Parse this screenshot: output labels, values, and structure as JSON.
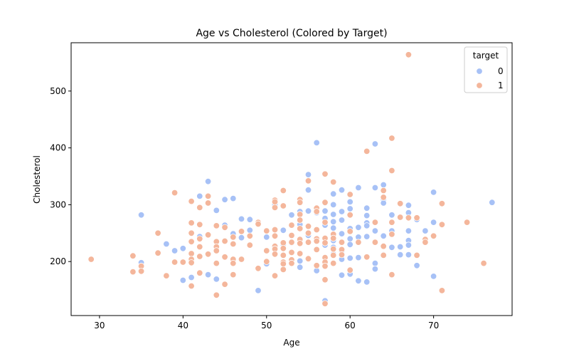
{
  "chart_data": {
    "type": "scatter",
    "title": "Age vs Cholesterol (Colored by Target)",
    "xlabel": "Age",
    "ylabel": "Cholesterol",
    "xlim": [
      26.6,
      79.4
    ],
    "ylim": [
      105,
      585
    ],
    "xticks": [
      30,
      40,
      50,
      60,
      70
    ],
    "yticks": [
      200,
      300,
      400,
      500
    ],
    "grid": false,
    "legend": {
      "title": "target",
      "placement": "top-right"
    },
    "series": [
      {
        "name": "0",
        "color": "#a7c1f6",
        "points": [
          [
            35,
            282
          ],
          [
            35,
            198
          ],
          [
            38,
            231
          ],
          [
            39,
            219
          ],
          [
            40,
            223
          ],
          [
            40,
            167
          ],
          [
            41,
            172
          ],
          [
            42,
            315
          ],
          [
            42,
            244
          ],
          [
            43,
            341
          ],
          [
            43,
            177
          ],
          [
            44,
            290
          ],
          [
            44,
            169
          ],
          [
            45,
            309
          ],
          [
            45,
            264
          ],
          [
            46,
            311
          ],
          [
            46,
            249
          ],
          [
            47,
            275
          ],
          [
            47,
            242
          ],
          [
            48,
            274
          ],
          [
            48,
            255
          ],
          [
            49,
            149
          ],
          [
            50,
            243
          ],
          [
            50,
            196
          ],
          [
            51,
            303
          ],
          [
            51,
            300
          ],
          [
            51,
            227
          ],
          [
            52,
            255
          ],
          [
            52,
            230
          ],
          [
            53,
            282
          ],
          [
            53,
            233
          ],
          [
            54,
            288
          ],
          [
            54,
            265
          ],
          [
            54,
            201
          ],
          [
            54,
            190
          ],
          [
            55,
            353
          ],
          [
            55,
            326
          ],
          [
            55,
            289
          ],
          [
            55,
            246
          ],
          [
            56,
            409
          ],
          [
            56,
            286
          ],
          [
            56,
            184
          ],
          [
            57,
            303
          ],
          [
            57,
            289
          ],
          [
            57,
            276
          ],
          [
            57,
            264
          ],
          [
            57,
            241
          ],
          [
            57,
            229
          ],
          [
            57,
            207
          ],
          [
            57,
            131
          ],
          [
            58,
            319
          ],
          [
            58,
            300
          ],
          [
            58,
            283
          ],
          [
            58,
            270
          ],
          [
            58,
            259
          ],
          [
            58,
            248
          ],
          [
            58,
            237
          ],
          [
            58,
            225
          ],
          [
            58,
            213
          ],
          [
            59,
            326
          ],
          [
            59,
            288
          ],
          [
            59,
            273
          ],
          [
            59,
            249
          ],
          [
            59,
            218
          ],
          [
            59,
            204
          ],
          [
            59,
            176
          ],
          [
            60,
            305
          ],
          [
            60,
            293
          ],
          [
            60,
            258
          ],
          [
            60,
            240
          ],
          [
            60,
            230
          ],
          [
            60,
            206
          ],
          [
            60,
            178
          ],
          [
            61,
            330
          ],
          [
            61,
            260
          ],
          [
            61,
            243
          ],
          [
            61,
            207
          ],
          [
            61,
            166
          ],
          [
            62,
            294
          ],
          [
            62,
            281
          ],
          [
            62,
            268
          ],
          [
            62,
            263
          ],
          [
            62,
            244
          ],
          [
            62,
            164
          ],
          [
            63,
            407
          ],
          [
            63,
            330
          ],
          [
            63,
            254
          ],
          [
            63,
            197
          ],
          [
            63,
            187
          ],
          [
            64,
            335
          ],
          [
            64,
            309
          ],
          [
            64,
            303
          ],
          [
            64,
            245
          ],
          [
            64,
            212
          ],
          [
            65,
            282
          ],
          [
            65,
            254
          ],
          [
            65,
            248
          ],
          [
            65,
            225
          ],
          [
            66,
            226
          ],
          [
            66,
            212
          ],
          [
            67,
            299
          ],
          [
            67,
            286
          ],
          [
            67,
            254
          ],
          [
            67,
            237
          ],
          [
            67,
            229
          ],
          [
            67,
            212
          ],
          [
            68,
            274
          ],
          [
            68,
            193
          ],
          [
            69,
            254
          ],
          [
            70,
            322
          ],
          [
            70,
            269
          ],
          [
            70,
            174
          ],
          [
            77,
            304
          ]
        ]
      },
      {
        "name": "1",
        "color": "#f4b69b",
        "points": [
          [
            29,
            204
          ],
          [
            34,
            210
          ],
          [
            34,
            182
          ],
          [
            35,
            192
          ],
          [
            35,
            183
          ],
          [
            37,
            250
          ],
          [
            37,
            215
          ],
          [
            38,
            175
          ],
          [
            39,
            321
          ],
          [
            39,
            199
          ],
          [
            40,
            199
          ],
          [
            41,
            306
          ],
          [
            41,
            268
          ],
          [
            41,
            250
          ],
          [
            41,
            235
          ],
          [
            41,
            214
          ],
          [
            41,
            204
          ],
          [
            41,
            198
          ],
          [
            41,
            157
          ],
          [
            42,
            295
          ],
          [
            42,
            265
          ],
          [
            42,
            240
          ],
          [
            42,
            226
          ],
          [
            42,
            209
          ],
          [
            42,
            180
          ],
          [
            43,
            315
          ],
          [
            43,
            303
          ],
          [
            43,
            247
          ],
          [
            43,
            213
          ],
          [
            44,
            263
          ],
          [
            44,
            235
          ],
          [
            44,
            226
          ],
          [
            44,
            219
          ],
          [
            44,
            197
          ],
          [
            44,
            141
          ],
          [
            45,
            260
          ],
          [
            45,
            236
          ],
          [
            45,
            208
          ],
          [
            45,
            160
          ],
          [
            46,
            243
          ],
          [
            46,
            231
          ],
          [
            46,
            204
          ],
          [
            46,
            197
          ],
          [
            46,
            177
          ],
          [
            47,
            253
          ],
          [
            47,
            204
          ],
          [
            48,
            245
          ],
          [
            48,
            229
          ],
          [
            49,
            269
          ],
          [
            49,
            266
          ],
          [
            49,
            188
          ],
          [
            50,
            254
          ],
          [
            50,
            219
          ],
          [
            50,
            200
          ],
          [
            51,
            308
          ],
          [
            51,
            305
          ],
          [
            51,
            295
          ],
          [
            51,
            256
          ],
          [
            51,
            245
          ],
          [
            51,
            227
          ],
          [
            51,
            222
          ],
          [
            51,
            213
          ],
          [
            51,
            175
          ],
          [
            52,
            325
          ],
          [
            52,
            298
          ],
          [
            52,
            233
          ],
          [
            52,
            223
          ],
          [
            52,
            211
          ],
          [
            52,
            199
          ],
          [
            52,
            196
          ],
          [
            52,
            186
          ],
          [
            53,
            264
          ],
          [
            53,
            246
          ],
          [
            53,
            234
          ],
          [
            53,
            216
          ],
          [
            53,
            203
          ],
          [
            53,
            197
          ],
          [
            54,
            309
          ],
          [
            54,
            304
          ],
          [
            54,
            283
          ],
          [
            54,
            273
          ],
          [
            54,
            258
          ],
          [
            54,
            239
          ],
          [
            54,
            232
          ],
          [
            54,
            214
          ],
          [
            55,
            342
          ],
          [
            55,
            262
          ],
          [
            55,
            250
          ],
          [
            55,
            234
          ],
          [
            55,
            205
          ],
          [
            56,
            294
          ],
          [
            56,
            288
          ],
          [
            56,
            256
          ],
          [
            56,
            240
          ],
          [
            56,
            236
          ],
          [
            56,
            221
          ],
          [
            56,
            193
          ],
          [
            57,
            354
          ],
          [
            57,
            304
          ],
          [
            57,
            269
          ],
          [
            57,
            241
          ],
          [
            57,
            233
          ],
          [
            57,
            207
          ],
          [
            57,
            199
          ],
          [
            57,
            192
          ],
          [
            57,
            168
          ],
          [
            57,
            126
          ],
          [
            58,
            340
          ],
          [
            58,
            248
          ],
          [
            58,
            241
          ],
          [
            58,
            222
          ],
          [
            58,
            211
          ],
          [
            58,
            197
          ],
          [
            59,
            234
          ],
          [
            59,
            221
          ],
          [
            59,
            212
          ],
          [
            60,
            318
          ],
          [
            60,
            282
          ],
          [
            60,
            253
          ],
          [
            60,
            185
          ],
          [
            61,
            234
          ],
          [
            62,
            394
          ],
          [
            62,
            208
          ],
          [
            63,
            269
          ],
          [
            63,
            234
          ],
          [
            64,
            325
          ],
          [
            64,
            313
          ],
          [
            64,
            227
          ],
          [
            64,
            211
          ],
          [
            65,
            417
          ],
          [
            65,
            360
          ],
          [
            65,
            269
          ],
          [
            65,
            248
          ],
          [
            65,
            177
          ],
          [
            66,
            302
          ],
          [
            66,
            278
          ],
          [
            67,
            564
          ],
          [
            67,
            277
          ],
          [
            68,
            277
          ],
          [
            68,
            211
          ],
          [
            69,
            239
          ],
          [
            69,
            234
          ],
          [
            70,
            245
          ],
          [
            71,
            302
          ],
          [
            71,
            265
          ],
          [
            71,
            149
          ],
          [
            74,
            269
          ],
          [
            76,
            197
          ]
        ]
      }
    ]
  }
}
